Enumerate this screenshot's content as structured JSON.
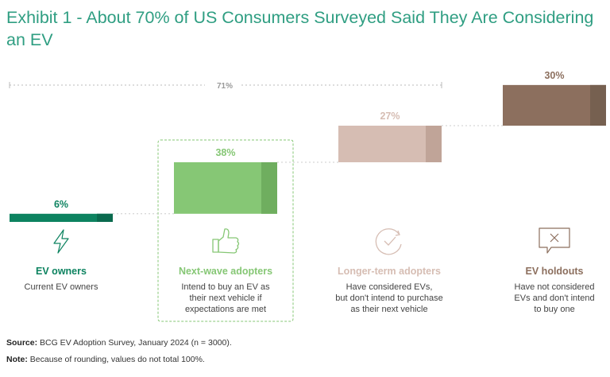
{
  "title": "Exhibit 1 - About 70% of US Consumers Surveyed Said They Are Considering an EV",
  "colors": {
    "title": "#2f9e82",
    "ev_owners": "#0d8360",
    "next_wave": "#86c775",
    "longer_term": "#d6bdb3",
    "holdouts": "#8c6f5e"
  },
  "chart_data": {
    "type": "waterfall",
    "title": "Exhibit 1 - About 70% of US Consumers Surveyed Said They Are Considering an EV",
    "unit": "%",
    "ylim": [
      0,
      100
    ],
    "bracket_label": "71%",
    "categories": [
      {
        "name": "EV owners",
        "value": 6,
        "label": "6%",
        "description": "Current EV owners",
        "icon": "lightning-icon"
      },
      {
        "name": "Next-wave adopters",
        "value": 38,
        "label": "38%",
        "description": "Intend to buy an EV as their next vehicle if expectations are met",
        "icon": "thumbs-up-icon"
      },
      {
        "name": "Longer-term adopters",
        "value": 27,
        "label": "27%",
        "description": "Have considered EVs, but don't intend to purchase as their next vehicle",
        "icon": "clock-icon"
      },
      {
        "name": "EV holdouts",
        "value": 30,
        "label": "30%",
        "description": "Have not considered EVs and don't intend to buy one",
        "icon": "x-message-icon"
      }
    ]
  },
  "footer": {
    "source_label": "Source:",
    "source_text": "BCG EV Adoption Survey, January 2024 (n = 3000).",
    "note_label": "Note:",
    "note_text": "Because of rounding, values do not total 100%."
  }
}
